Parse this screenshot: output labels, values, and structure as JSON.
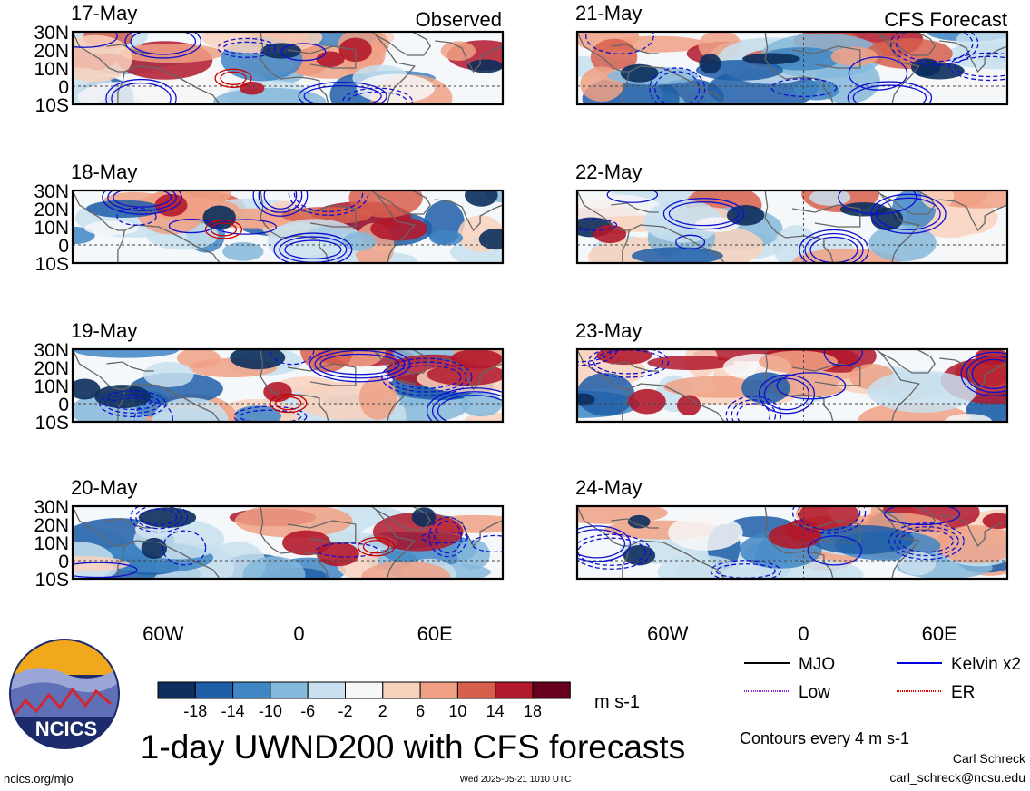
{
  "figure": {
    "title": "1-day UWND200 with CFS forecasts",
    "observed_label": "Observed",
    "forecast_label": "CFS Forecast",
    "colorbar_unit": "m s-1",
    "contour_note": "Contours every 4 m s-1",
    "site": "ncics.org/mjo",
    "timestamp": "Wed 2025-05-21 1010 UTC",
    "author": "Carl Schreck",
    "email": "carl_schreck@ncsu.edu",
    "logo_text": "NCICS"
  },
  "chart_data": {
    "type": "heatmap",
    "variable": "UWND200",
    "panels": [
      {
        "date": "17-May",
        "kind": "observed",
        "column": 0,
        "row": 0
      },
      {
        "date": "18-May",
        "kind": "observed",
        "column": 0,
        "row": 1
      },
      {
        "date": "19-May",
        "kind": "observed",
        "column": 0,
        "row": 2
      },
      {
        "date": "20-May",
        "kind": "observed",
        "column": 0,
        "row": 3
      },
      {
        "date": "21-May",
        "kind": "forecast",
        "column": 1,
        "row": 0
      },
      {
        "date": "22-May",
        "kind": "forecast",
        "column": 1,
        "row": 1
      },
      {
        "date": "23-May",
        "kind": "forecast",
        "column": 1,
        "row": 2
      },
      {
        "date": "24-May",
        "kind": "forecast",
        "column": 1,
        "row": 3
      }
    ],
    "lon_range": [
      -100,
      90
    ],
    "lat_range": [
      -10,
      30
    ],
    "x_ticks": [
      {
        "value": -60,
        "label": "60W"
      },
      {
        "value": 0,
        "label": "0"
      },
      {
        "value": 60,
        "label": "60E"
      }
    ],
    "y_ticks": [
      {
        "value": 30,
        "label": "30N"
      },
      {
        "value": 20,
        "label": "20N"
      },
      {
        "value": 10,
        "label": "10N"
      },
      {
        "value": 0,
        "label": "0"
      },
      {
        "value": -10,
        "label": "10S"
      }
    ],
    "colorbar": {
      "tick_labels": [
        "-18",
        "-14",
        "-10",
        "-6",
        "-2",
        "2",
        "6",
        "10",
        "14",
        "18"
      ],
      "colors": [
        "#0b2e5c",
        "#1f5ea8",
        "#3f86c4",
        "#85b9db",
        "#c8e0ef",
        "#f7f7f7",
        "#f9d2bd",
        "#f0a185",
        "#d7604d",
        "#b2182b",
        "#67001f"
      ]
    },
    "legend": [
      {
        "label": "MJO",
        "color": "#000000"
      },
      {
        "label": "Kelvin x2",
        "color": "#0000dd"
      },
      {
        "label": "Low",
        "color": "#8a2be2"
      },
      {
        "label": "ER",
        "color": "#ee0000"
      }
    ]
  }
}
